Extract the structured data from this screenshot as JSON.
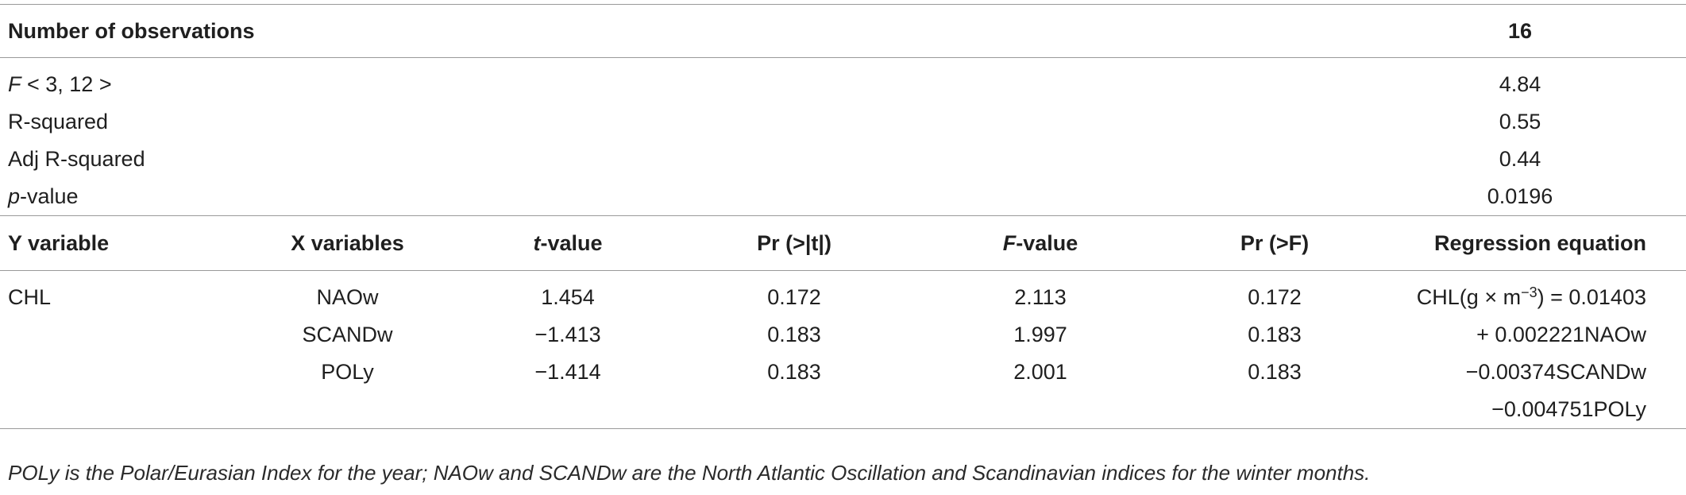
{
  "summary": {
    "header": {
      "label": "Number of observations",
      "value": "16"
    },
    "rows": [
      {
        "label_italic": "F",
        "label_rest": " < 3, 12 >",
        "value": "4.84"
      },
      {
        "label_italic": "",
        "label_rest": "R-squared",
        "value": "0.55"
      },
      {
        "label_italic": "",
        "label_rest": "Adj R-squared",
        "value": "0.44"
      },
      {
        "label_italic": "p",
        "label_rest": "-value",
        "value": "0.0196"
      }
    ]
  },
  "columns": {
    "y_variable": "Y variable",
    "x_variables": "X variables",
    "t_value_italic": "t",
    "t_value_rest": "-value",
    "pr_t": "Pr (>|t|)",
    "f_value_italic": "F",
    "f_value_rest": "-value",
    "pr_f": "Pr (>F)",
    "regression": "Regression equation"
  },
  "rows": [
    {
      "y": "CHL",
      "x": "NAOw",
      "t": "1.454",
      "pr_t": "0.172",
      "f": "2.113",
      "pr_f": "0.172",
      "eq_prefix": "CHL(g × m",
      "eq_sup": "−3",
      "eq_suffix": ") = 0.01403"
    },
    {
      "y": "",
      "x": "SCANDw",
      "t": "−1.413",
      "pr_t": "0.183",
      "f": "1.997",
      "pr_f": "0.183",
      "eq": "+ 0.002221NAOw"
    },
    {
      "y": "",
      "x": "POLy",
      "t": "−1.414",
      "pr_t": "0.183",
      "f": "2.001",
      "pr_f": "0.183",
      "eq": "−0.00374SCANDw"
    },
    {
      "eq": "−0.004751POLy"
    }
  ],
  "footnote": "POLy is the Polar/Eurasian Index for the year; NAOw and SCANDw are the North Atlantic Oscillation and Scandinavian indices for the winter months."
}
